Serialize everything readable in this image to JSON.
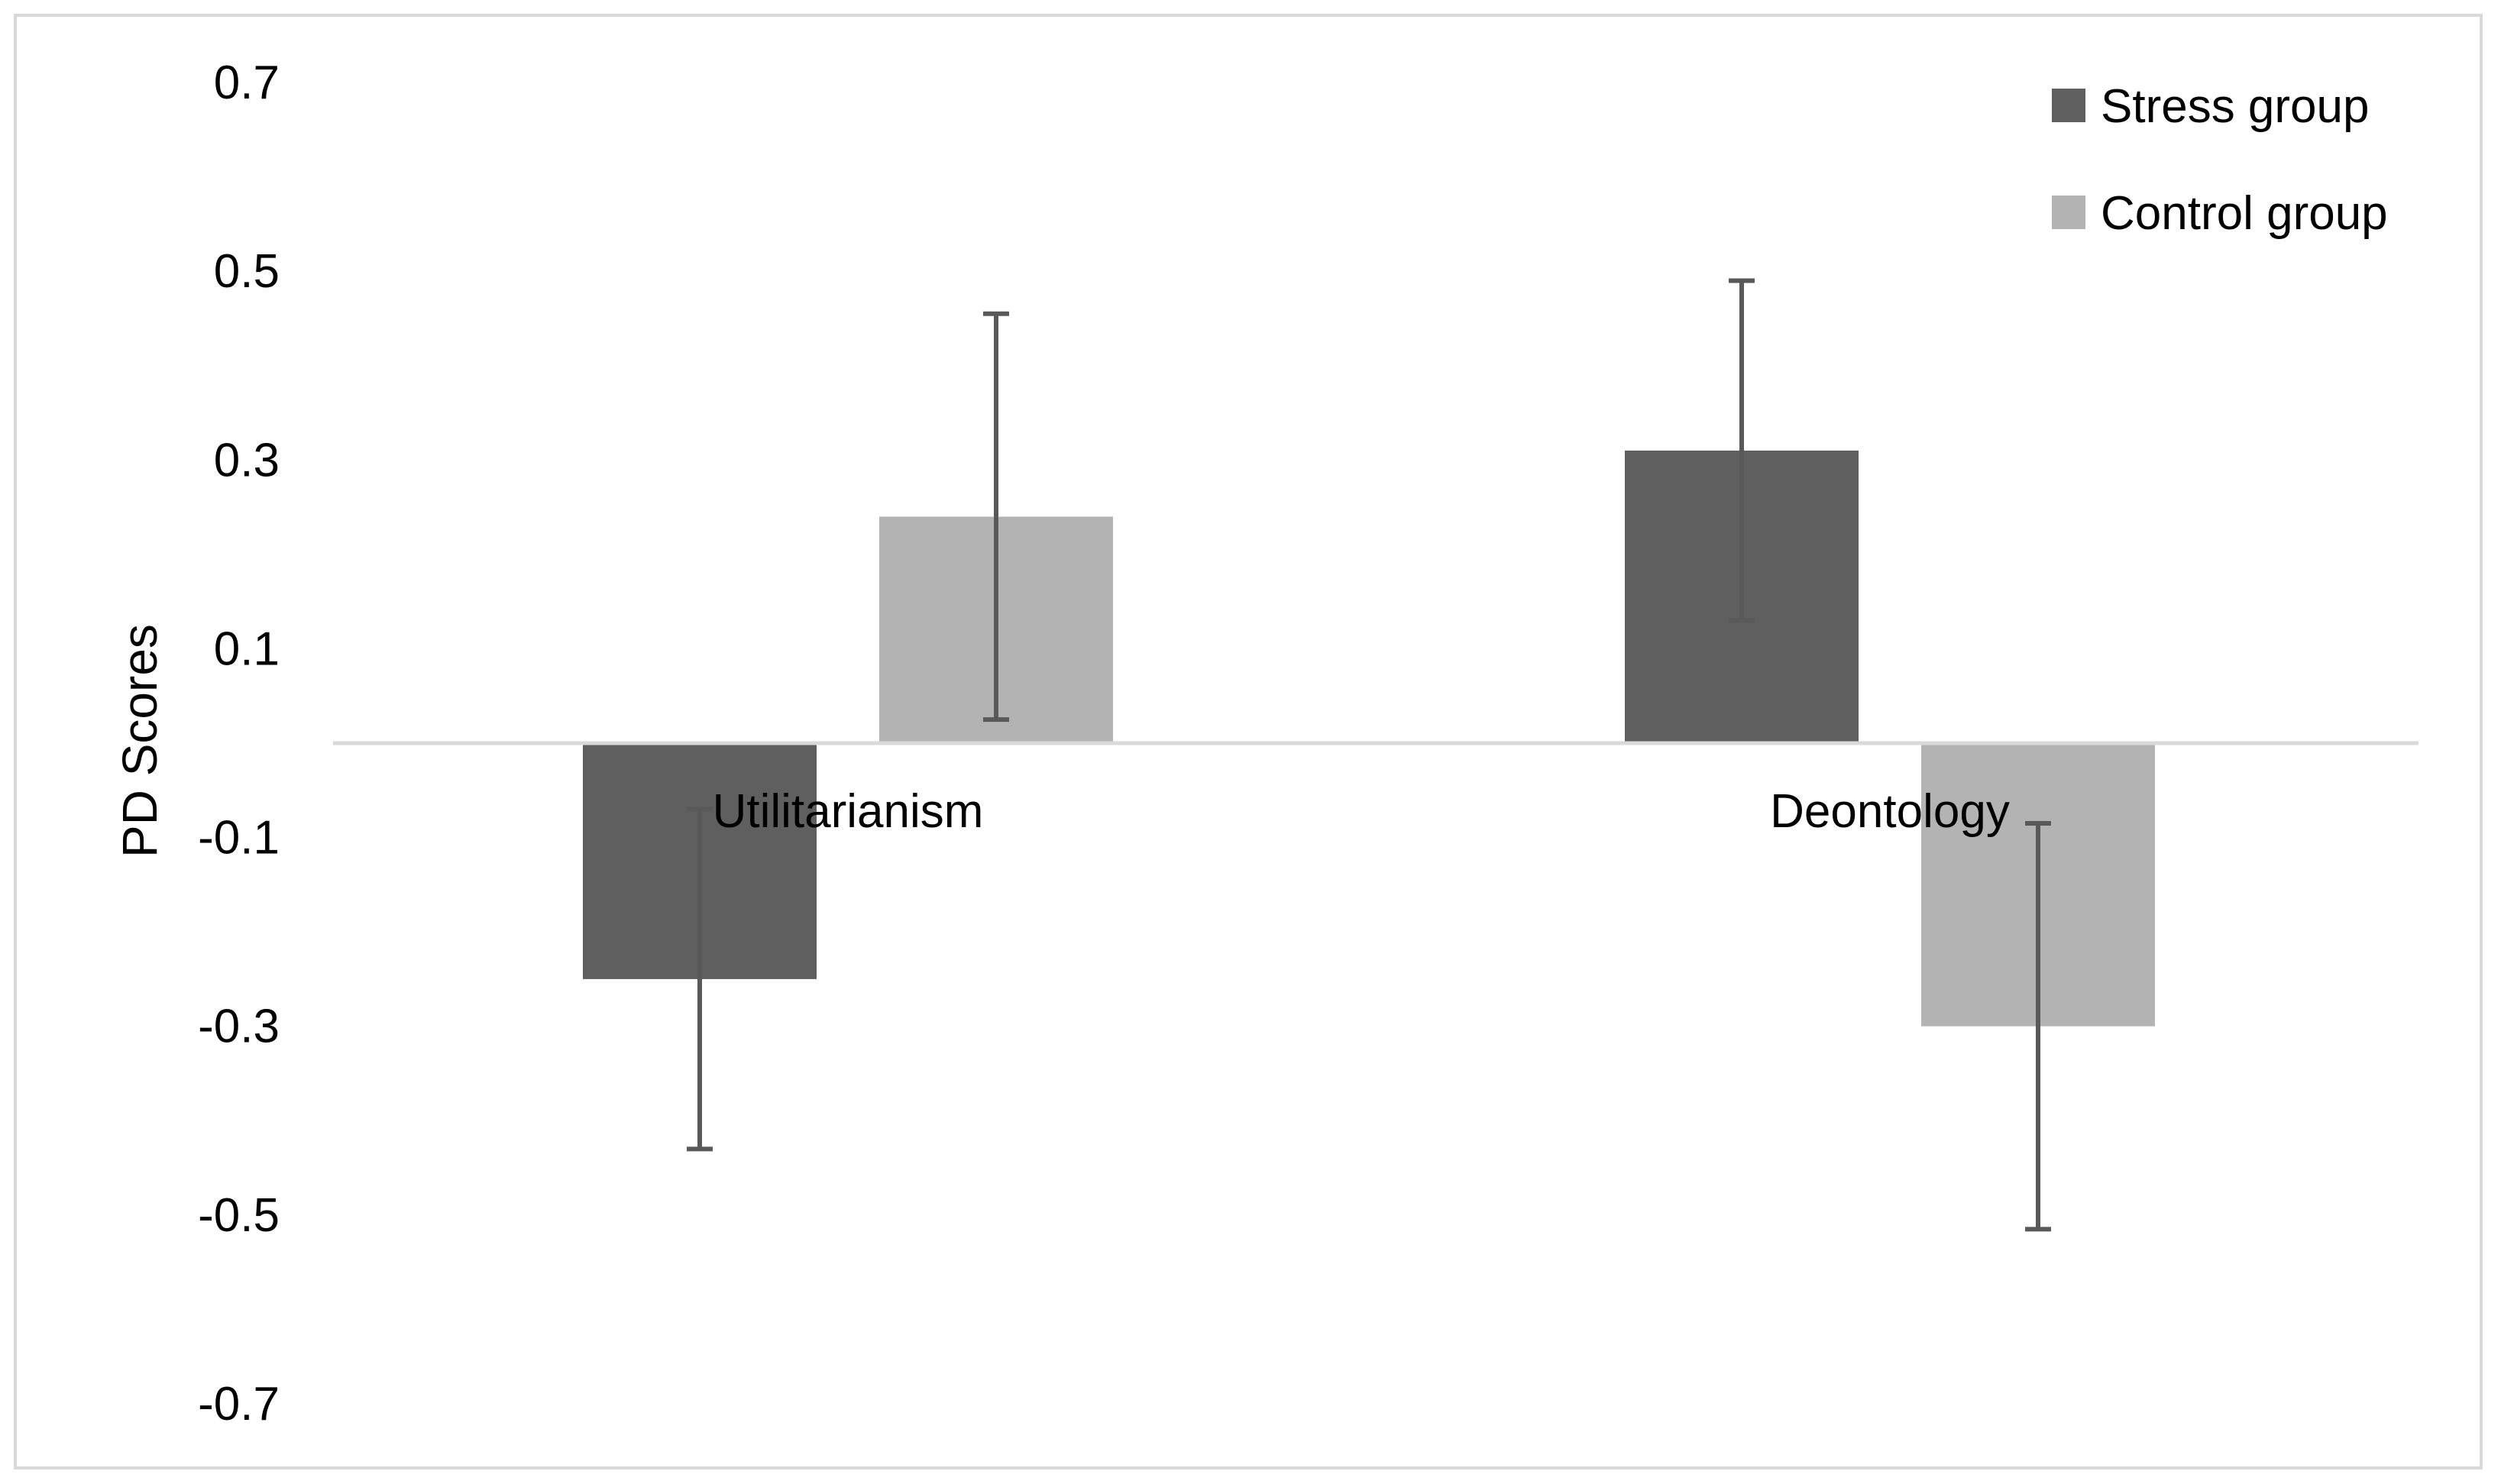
{
  "chart_data": {
    "type": "bar",
    "title": "",
    "xlabel": "",
    "ylabel": "PD Scores",
    "categories": [
      "Utilitarianism",
      "Deontology"
    ],
    "series": [
      {
        "name": "Stress group",
        "color": "#5f5f5f",
        "values": [
          -0.25,
          0.31
        ],
        "error": [
          0.18,
          0.18
        ]
      },
      {
        "name": "Control group",
        "color": "#b3b3b3",
        "values": [
          0.24,
          -0.3
        ],
        "error": [
          0.215,
          0.215
        ]
      }
    ],
    "ylim": [
      -0.7,
      0.7
    ],
    "yticks": [
      "0.7",
      "0.5",
      "0.3",
      "0.1",
      "-0.1",
      "-0.3",
      "-0.5",
      "-0.7"
    ],
    "ytick_values": [
      0.7,
      0.5,
      0.3,
      0.1,
      -0.1,
      -0.3,
      -0.5,
      -0.7
    ],
    "grid": false,
    "legend": "top-right",
    "error_bar_color": "#595959",
    "axis_color": "#d9d9d9"
  }
}
